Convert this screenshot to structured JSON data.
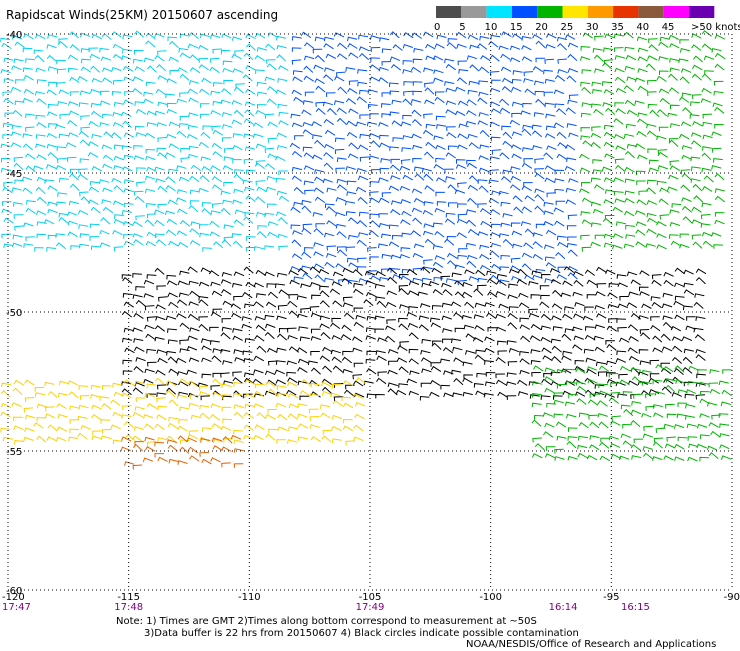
{
  "title": "Rapidscat Winds(25KM) 20150607 ascending",
  "legend": {
    "bins": [
      {
        "label": "0",
        "color": "#4d4d4d"
      },
      {
        "label": "5",
        "color": "#999999"
      },
      {
        "label": "10",
        "color": "#00e5ff"
      },
      {
        "label": "15",
        "color": "#0050ff"
      },
      {
        "label": "20",
        "color": "#00b400"
      },
      {
        "label": "25",
        "color": "#ffe600"
      },
      {
        "label": "30",
        "color": "#ff9900"
      },
      {
        "label": "35",
        "color": "#e63300"
      },
      {
        "label": "40",
        "color": "#8b5a3c"
      },
      {
        "label": "45",
        "color": "#ff00ff"
      },
      {
        "label": ">50 knots",
        "color": "#6a00b0"
      }
    ]
  },
  "map": {
    "lon_range": [
      -120,
      -90
    ],
    "lat_range": [
      -60,
      -40
    ],
    "lon_ticks": [
      {
        "value": -120,
        "label": "-120"
      },
      {
        "value": -115,
        "label": "-115"
      },
      {
        "value": -110,
        "label": "-110"
      },
      {
        "value": -105,
        "label": "-105"
      },
      {
        "value": -100,
        "label": "-100"
      },
      {
        "value": -95,
        "label": "-95"
      },
      {
        "value": -90,
        "label": "-90"
      }
    ],
    "lat_ticks": [
      {
        "value": -40,
        "label": "-40"
      },
      {
        "value": -45,
        "label": "-45"
      },
      {
        "value": -50,
        "label": "-50"
      },
      {
        "value": -55,
        "label": "-55"
      },
      {
        "value": -60,
        "label": "-60"
      }
    ],
    "time_labels": [
      {
        "lon": -120,
        "label": "17:47"
      },
      {
        "lon": -115,
        "label": "17:48"
      },
      {
        "lon": -105,
        "label": "17:49"
      },
      {
        "lon": -97,
        "label": "16:14"
      },
      {
        "lon": -94,
        "label": "16:15"
      }
    ],
    "wind_regions": [
      {
        "name": "light-cyan",
        "color": "#00d0f0",
        "lon": [
          -120,
          -108
        ],
        "lat": [
          -48,
          -40
        ]
      },
      {
        "name": "moderate-blue",
        "color": "#0050ff",
        "lon": [
          -108,
          -96
        ],
        "lat": [
          -49,
          -40
        ]
      },
      {
        "name": "strong-green-north",
        "color": "#00b400",
        "lon": [
          -96,
          -90
        ],
        "lat": [
          -48,
          -40
        ]
      },
      {
        "name": "black-band",
        "color": "#000000",
        "lon": [
          -115,
          -91
        ],
        "lat": [
          -53,
          -48.5
        ]
      },
      {
        "name": "yellow-band",
        "color": "#ffd000",
        "lon": [
          -120,
          -105
        ],
        "lat": [
          -55,
          -52.5
        ]
      },
      {
        "name": "green-south",
        "color": "#00b400",
        "lon": [
          -98,
          -90
        ],
        "lat": [
          -55.5,
          -52
        ]
      },
      {
        "name": "orange-band",
        "color": "#e66000",
        "lon": [
          -115,
          -110
        ],
        "lat": [
          -55.5,
          -54.5
        ]
      }
    ]
  },
  "notes": {
    "line1": "Note: 1) Times are GMT 2)Times along bottom correspond to measurement at ~50S",
    "line2": "3)Data buffer is 22 hrs from 20150607 4) Black circles indicate possible contamination",
    "line3": "NOAA/NESDIS/Office of Research and Applications"
  }
}
